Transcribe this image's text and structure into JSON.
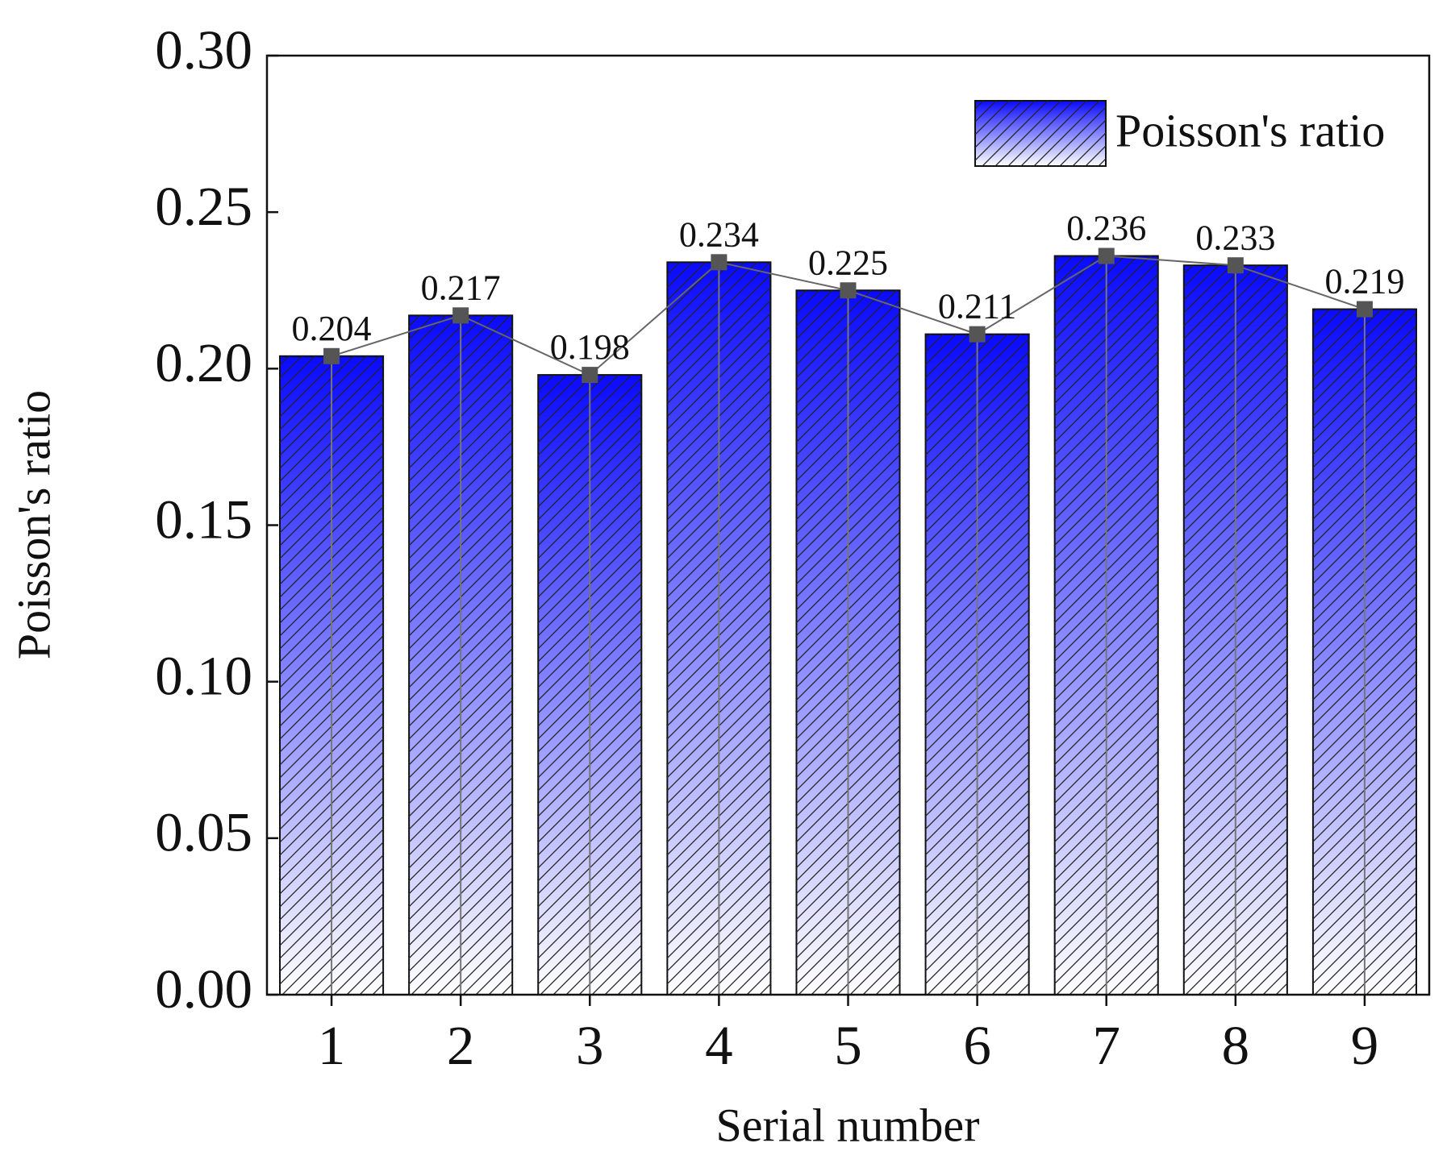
{
  "chart_data": {
    "type": "bar",
    "x_label": "Serial number",
    "y_label": "Poisson's ratio",
    "categories": [
      "1",
      "2",
      "3",
      "4",
      "5",
      "6",
      "7",
      "8",
      "9"
    ],
    "series": [
      {
        "name": "Poisson's ratio",
        "color": "#0a0aff",
        "values": [
          0.204,
          0.217,
          0.198,
          0.234,
          0.225,
          0.211,
          0.236,
          0.233,
          0.219
        ]
      }
    ],
    "line_overlay": true,
    "marker_color": "#555555",
    "ylim": [
      0,
      0.3
    ],
    "yticks": [
      {
        "value": 0,
        "label": "0.00"
      },
      0.05,
      {
        "value": 0.1,
        "label": "0.10"
      },
      0.15,
      {
        "value": 0.2,
        "label": "0.20"
      },
      0.25,
      {
        "value": 0.3,
        "label": "0.30"
      }
    ],
    "legend": "upper right"
  }
}
